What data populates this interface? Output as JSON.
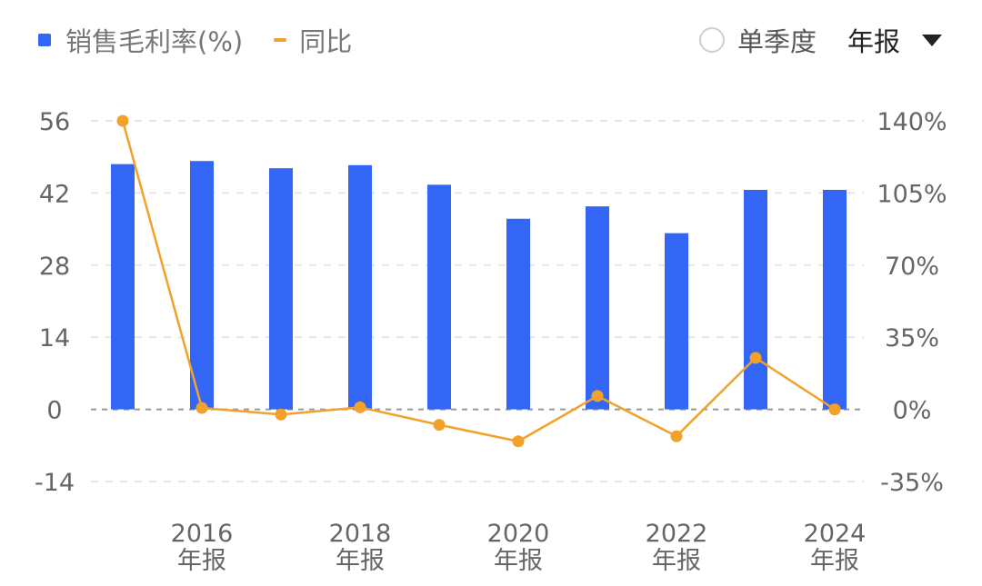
{
  "legend": {
    "bar_label": "销售毛利率(%)",
    "line_label": "同比"
  },
  "controls": {
    "single_quarter_label": "单季度",
    "period_value": "年报"
  },
  "colors": {
    "bar": "#3366f5",
    "line": "#f2a12a",
    "grid": "#e6e6e6",
    "zero_line": "#999999"
  },
  "chart_data": {
    "type": "bar",
    "x": [
      "2015",
      "2016",
      "2017",
      "2018",
      "2019",
      "2020",
      "2021",
      "2022",
      "2023",
      "2024"
    ],
    "x_tick_labels": [
      {
        "year": "2016",
        "period": "年报"
      },
      {
        "year": "2018",
        "period": "年报"
      },
      {
        "year": "2020",
        "period": "年报"
      },
      {
        "year": "2022",
        "period": "年报"
      },
      {
        "year": "2024",
        "period": "年报"
      }
    ],
    "series": [
      {
        "name": "销售毛利率(%)",
        "type": "bar",
        "axis": "left",
        "values": [
          47.6,
          48.2,
          46.8,
          47.4,
          43.6,
          37.0,
          39.4,
          34.2,
          42.6,
          42.6
        ]
      },
      {
        "name": "同比",
        "type": "line",
        "axis": "right",
        "values": [
          140,
          0.7,
          -2.5,
          1.0,
          -7.5,
          -15.5,
          6.5,
          -13.0,
          25.0,
          0.0
        ]
      }
    ],
    "left_axis": {
      "ticks": [
        56,
        42,
        28,
        14,
        0,
        -14
      ],
      "tick_labels": [
        "56",
        "42",
        "28",
        "14",
        "0",
        "-14"
      ],
      "range": [
        -14,
        56
      ]
    },
    "right_axis": {
      "ticks": [
        140,
        105,
        70,
        35,
        0,
        -35
      ],
      "tick_labels": [
        "140%",
        "105%",
        "70%",
        "35%",
        "0%",
        "-35%"
      ],
      "range": [
        -35,
        140
      ]
    },
    "grid": true,
    "legend_position": "top-left"
  }
}
